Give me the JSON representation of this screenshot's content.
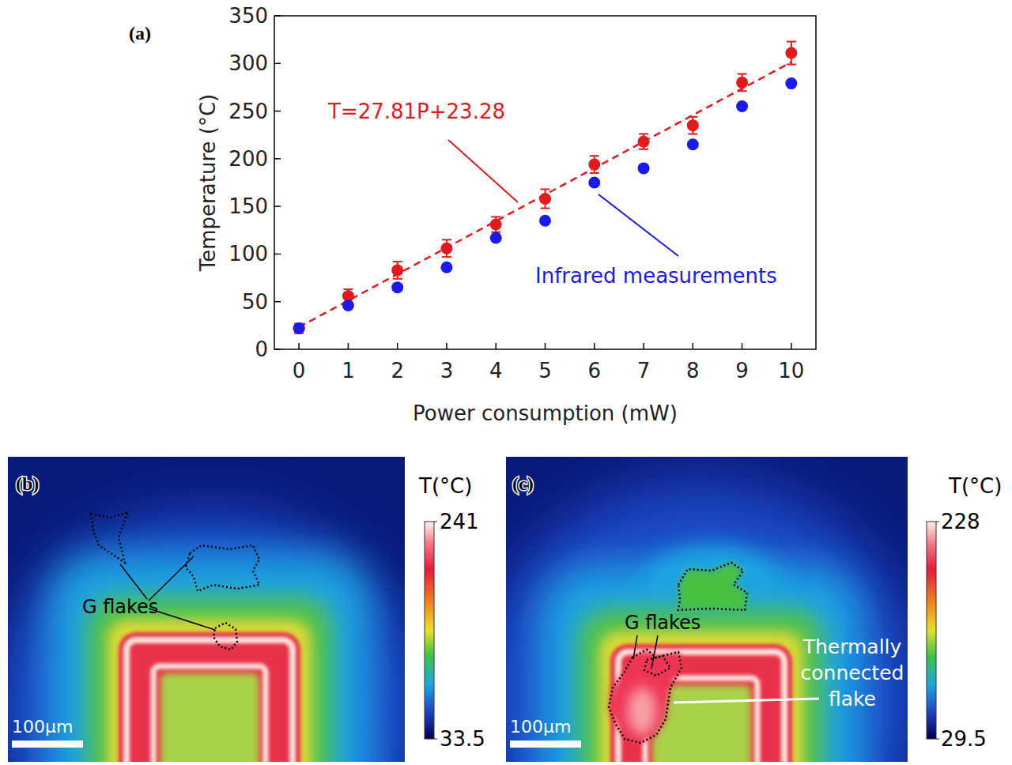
{
  "chart_data": [
    {
      "type": "scatter",
      "panel": "(a)",
      "x_label": "Power consumption (mW)",
      "y_label": "Temperature (°C)",
      "x": [
        0,
        1,
        2,
        3,
        4,
        5,
        6,
        7,
        8,
        9,
        10
      ],
      "xlim": [
        -0.5,
        10.5
      ],
      "xticks": [
        0,
        1,
        2,
        3,
        4,
        5,
        6,
        7,
        8,
        9,
        10
      ],
      "ylim": [
        0,
        350
      ],
      "yticks": [
        0,
        50,
        100,
        150,
        200,
        250,
        300,
        350
      ],
      "series": [
        {
          "color": "#e3191c",
          "marker": "circle",
          "values": [
            22,
            56,
            83,
            106,
            131,
            158,
            194,
            218,
            235,
            280,
            311
          ],
          "errors": [
            5,
            7,
            9,
            9,
            8,
            10,
            9,
            8,
            9,
            9,
            12
          ]
        },
        {
          "name": "Infrared measurements",
          "color": "#1a1aee",
          "marker": "circle",
          "values": [
            22,
            46,
            65,
            86,
            117,
            135,
            175,
            190,
            215,
            255,
            279
          ]
        },
        {
          "name": "T=27.81P+23.28",
          "type": "line",
          "line_style": "dashed",
          "color": "#e3191c",
          "x": [
            0,
            10
          ],
          "values": [
            23.28,
            301.38
          ]
        }
      ]
    },
    {
      "type": "thermal_image",
      "panel": "(b)",
      "colorbar_title": "T(°C)",
      "colorbar_range": [
        33.5,
        241
      ],
      "colorbar_ticks": [
        33.5,
        241
      ],
      "annotations": [
        "G flakes"
      ],
      "scale_bar": "100μm"
    },
    {
      "type": "thermal_image",
      "panel": "(c)",
      "colorbar_title": "T(°C)",
      "colorbar_range": [
        29.5,
        228
      ],
      "colorbar_ticks": [
        29.5,
        228
      ],
      "annotations": [
        "G flakes",
        "Thermally connected flake"
      ],
      "scale_bar": "100μm"
    }
  ]
}
